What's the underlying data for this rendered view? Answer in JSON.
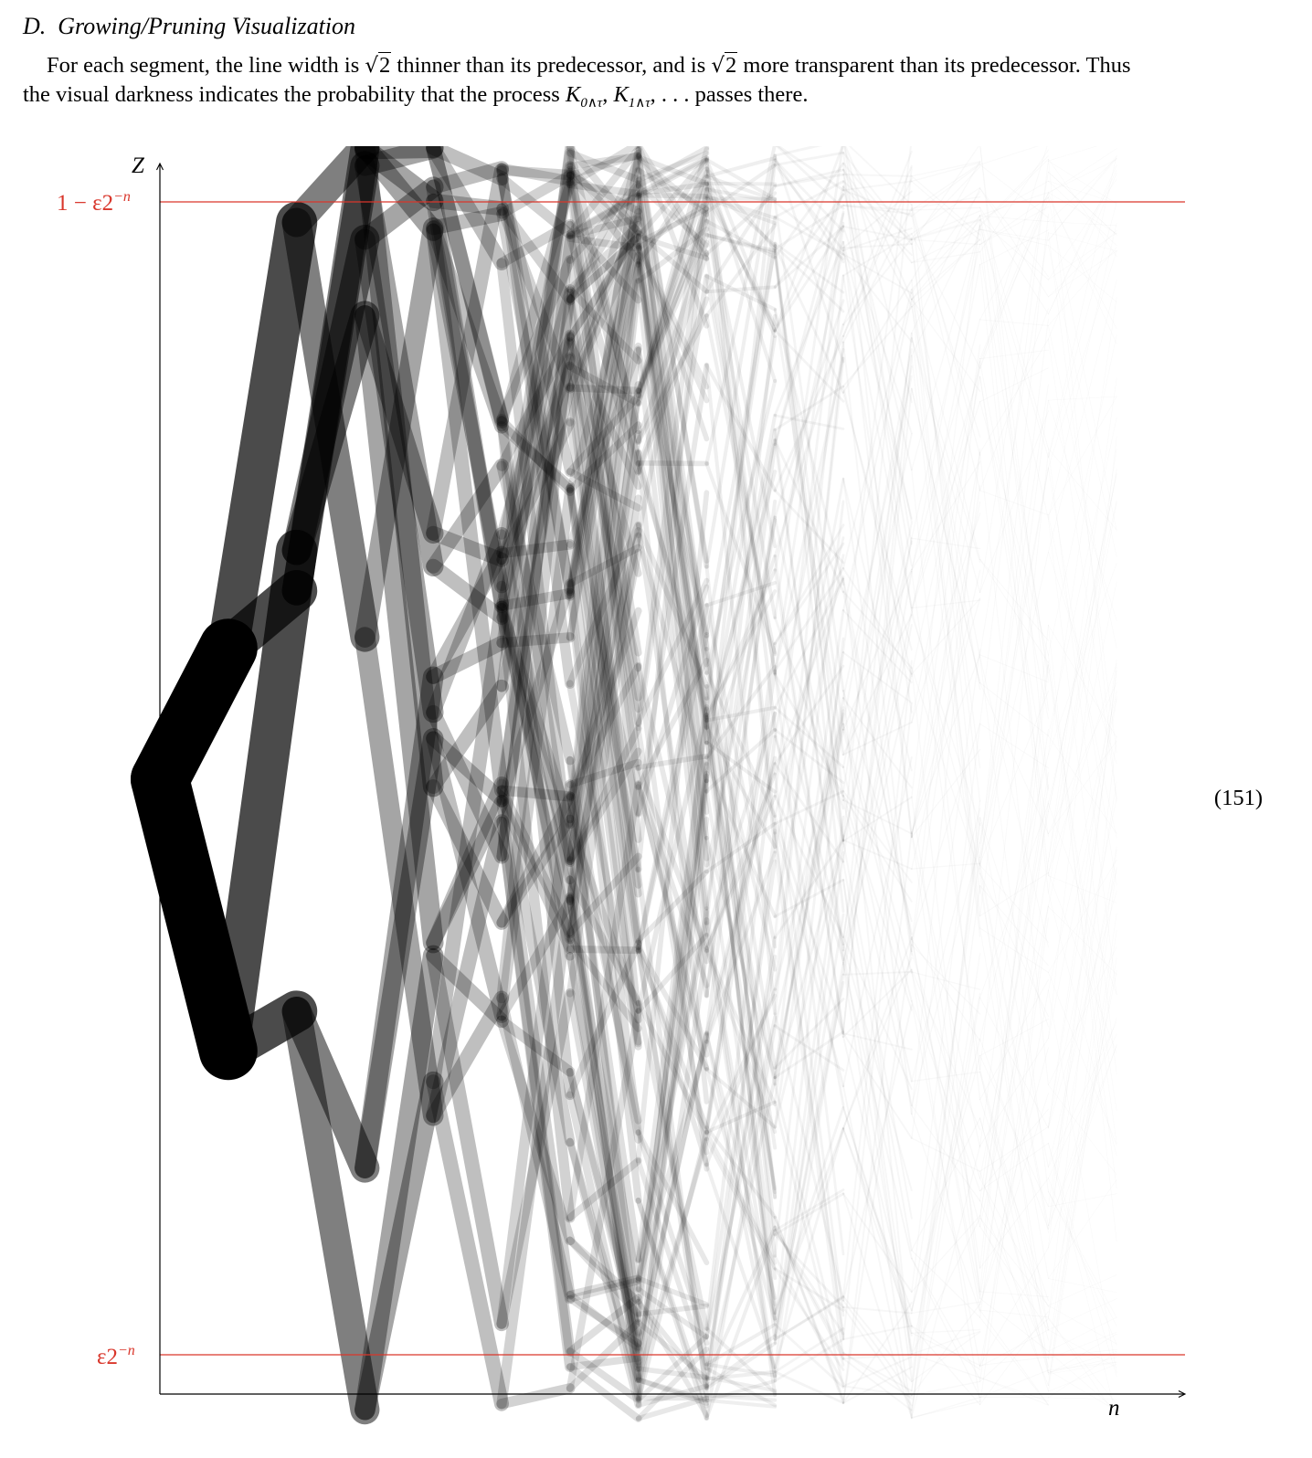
{
  "section": {
    "number": "D.",
    "title": "Growing/Pruning Visualization"
  },
  "paragraph": {
    "line1_a": "For each segment, the line width is ",
    "sqrt_arg": "2",
    "line1_b": " thinner than its predecessor, and is ",
    "line1_c": " more transparent than its predecessor. Thus",
    "line2_a": "the visual darkness indicates the probability that the process ",
    "process_sym": "K",
    "process_sub0": "0∧τ",
    "process_sub1": "1∧τ",
    "process_tail": ", . . .",
    "line2_b": " passes there."
  },
  "equation_number": "(151)",
  "figure": {
    "y_axis_label": "Z",
    "x_axis_label": "n",
    "upper_bound_label": "1 − ε2",
    "upper_bound_exp": "−n",
    "lower_bound_label": "ε2",
    "lower_bound_exp": "−n",
    "bound_color": "#d9362b",
    "ink_color": "#000000"
  },
  "chart_data": {
    "type": "line",
    "description_mode": "branching random tree of segments; each generation doubles the branches, width and opacity shrink by sqrt(2)",
    "x_axis_label": "n",
    "y_axis_label": "Z",
    "levels": [
      0,
      1,
      2,
      3,
      4,
      5,
      6,
      7,
      8,
      9,
      10,
      11,
      12,
      13,
      14
    ],
    "ylim": [
      0,
      1
    ],
    "start_value": 0.5,
    "upper_bound_label": "1 − ε2^−n",
    "lower_bound_label": "ε2^−n",
    "width_factor": "1/√2 per level",
    "opacity_factor": "1/√2 per level",
    "grid": false
  }
}
